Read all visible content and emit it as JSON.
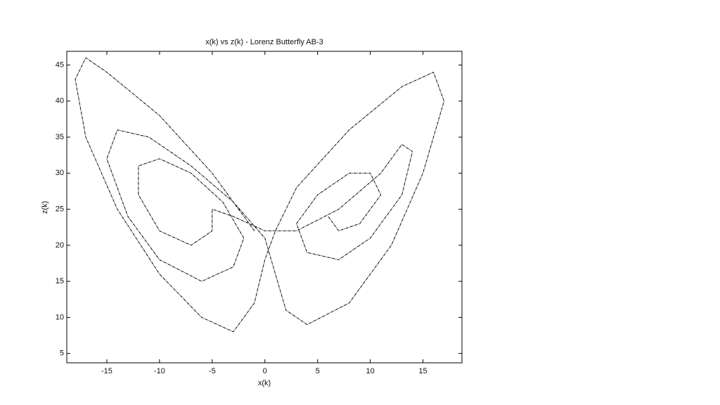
{
  "chart_data": {
    "type": "line",
    "title": "x(k) vs z(k) - Lorenz Butterfly AB-3",
    "x_label": "x(k)",
    "y_label": "z(k)",
    "x": [
      -1,
      -5,
      -10,
      -15,
      -17,
      -18,
      -17,
      -14,
      -10,
      -6,
      -3,
      -1,
      0,
      1,
      3,
      8,
      13,
      16,
      17,
      15,
      12,
      8,
      4,
      2,
      1,
      0,
      -3,
      -7,
      -11,
      -14,
      -15,
      -13,
      -10,
      -6,
      -3,
      -2,
      -4,
      -7,
      -10,
      -12,
      -12,
      -10,
      -7,
      -5,
      -5,
      -3,
      0,
      3,
      7,
      11,
      13,
      14,
      13,
      10,
      7,
      4,
      3,
      5,
      8,
      10,
      11,
      9,
      7,
      6
    ],
    "series": [
      {
        "color": "#000000",
        "values": [
          22,
          30,
          38,
          44,
          46,
          43,
          35,
          25,
          16,
          10,
          8,
          12,
          18,
          22,
          28,
          36,
          42,
          44,
          40,
          30,
          20,
          12,
          9,
          11,
          16,
          21,
          26,
          31,
          35,
          36,
          32,
          24,
          18,
          15,
          17,
          21,
          26,
          30,
          32,
          31,
          27,
          22,
          20,
          22,
          25,
          24,
          22,
          22,
          25,
          30,
          34,
          33,
          27,
          21,
          18,
          19,
          23,
          27,
          30,
          30,
          27,
          23,
          22,
          24
        ]
      }
    ],
    "xlim": [
      -18.8,
      18.7
    ],
    "ylim": [
      3.7,
      46.9
    ],
    "xticks": [
      -15,
      -10,
      -5,
      0,
      5,
      10,
      15
    ],
    "yticks": [
      5,
      10,
      15,
      20,
      25,
      30,
      35,
      40,
      45
    ]
  }
}
